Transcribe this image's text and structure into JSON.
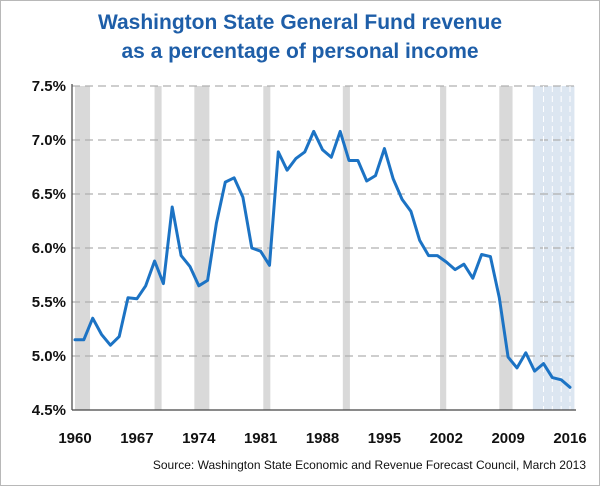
{
  "chart_data": {
    "type": "line",
    "title": "Washington State General Fund revenue",
    "subtitle": "as a percentage of personal income",
    "source": "Source: Washington State Economic and Revenue Forecast Council, March 2013",
    "xlabel": "",
    "ylabel": "",
    "xlim": [
      1960,
      2016
    ],
    "ylim": [
      4.5,
      7.5
    ],
    "y_ticks": [
      {
        "value": 7.5,
        "label": "7.5%"
      },
      {
        "value": 7.0,
        "label": "7.0%"
      },
      {
        "value": 6.5,
        "label": "6.5%"
      },
      {
        "value": 6.0,
        "label": "6.0%"
      },
      {
        "value": 5.5,
        "label": "5.5%"
      },
      {
        "value": 5.0,
        "label": "5.0%"
      },
      {
        "value": 4.5,
        "label": "4.5%"
      }
    ],
    "x_ticks": [
      {
        "value": 1960,
        "label": "1960"
      },
      {
        "value": 1967,
        "label": "1967"
      },
      {
        "value": 1974,
        "label": "1974"
      },
      {
        "value": 1981,
        "label": "1981"
      },
      {
        "value": 1988,
        "label": "1988"
      },
      {
        "value": 1995,
        "label": "1995"
      },
      {
        "value": 2002,
        "label": "2002"
      },
      {
        "value": 2009,
        "label": "2009"
      },
      {
        "value": 2016,
        "label": "2016"
      }
    ],
    "grid": "horizontal-dashed",
    "recession_bands": [
      {
        "start": 1960.0,
        "end": 1961.7
      },
      {
        "start": 1969.0,
        "end": 1969.8
      },
      {
        "start": 1973.5,
        "end": 1975.2
      },
      {
        "start": 1981.3,
        "end": 1982.1
      },
      {
        "start": 1990.3,
        "end": 1991.1
      },
      {
        "start": 2001.3,
        "end": 2002.0
      },
      {
        "start": 2008.0,
        "end": 2009.5
      }
    ],
    "forecast_band": {
      "start": 2011.8,
      "end": 2016.5,
      "color": "#dce6f1"
    },
    "band_color": "#d9d9d9",
    "line_color": "#1c73c4",
    "series": [
      {
        "x": [
          1960,
          1961,
          1962,
          1963,
          1964,
          1965,
          1966,
          1967,
          1968,
          1969,
          1970,
          1971,
          1972,
          1973,
          1974,
          1975,
          1976,
          1977,
          1978,
          1979,
          1980,
          1981,
          1982,
          1983,
          1984,
          1985,
          1986,
          1987,
          1988,
          1989,
          1990,
          1991,
          1992,
          1993,
          1994,
          1995,
          1996,
          1997,
          1998,
          1999,
          2000,
          2001,
          2002,
          2003,
          2004,
          2005,
          2006,
          2007,
          2008,
          2009,
          2010,
          2011,
          2012,
          2013,
          2014,
          2015,
          2016
        ],
        "values": [
          5.15,
          5.15,
          5.35,
          5.2,
          5.1,
          5.18,
          5.54,
          5.53,
          5.65,
          5.88,
          5.67,
          6.38,
          5.93,
          5.83,
          5.65,
          5.7,
          6.23,
          6.61,
          6.65,
          6.47,
          6.0,
          5.97,
          5.84,
          6.89,
          6.72,
          6.83,
          6.89,
          7.08,
          6.91,
          6.84,
          7.08,
          6.81,
          6.81,
          6.62,
          6.67,
          6.92,
          6.64,
          6.45,
          6.34,
          6.07,
          5.93,
          5.93,
          5.87,
          5.8,
          5.85,
          5.72,
          5.94,
          5.92,
          5.54,
          4.99,
          4.89,
          5.03,
          4.86,
          4.93,
          4.8,
          4.78,
          4.71
        ]
      }
    ]
  }
}
